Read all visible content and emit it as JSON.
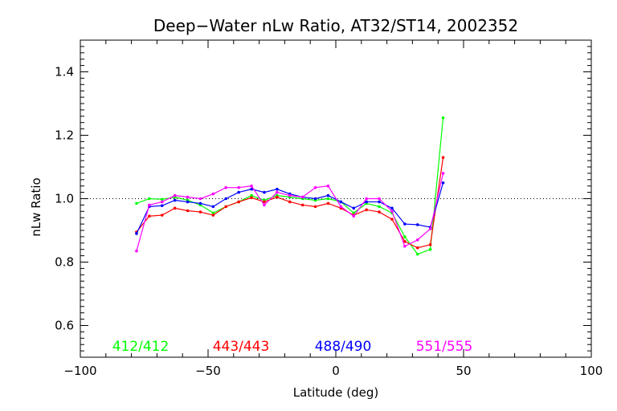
{
  "chart_data": {
    "type": "line",
    "title": "Deep−Water nLw Ratio, AT32/ST14, 2002352",
    "xlabel": "Latitude (deg)",
    "ylabel": "nLw Ratio",
    "xlim": [
      -100,
      100
    ],
    "ylim": [
      0.5,
      1.5
    ],
    "xticks": [
      -100,
      -50,
      0,
      50,
      100
    ],
    "xtick_labels": [
      "−100",
      "−50",
      "0",
      "50",
      "100"
    ],
    "yticks": [
      0.6,
      0.8,
      1.0,
      1.2,
      1.4
    ],
    "ytick_labels": [
      "0.6",
      "0.8",
      "1.0",
      "1.2",
      "1.4"
    ],
    "reference_line": {
      "y": 1.0,
      "style": "dotted"
    },
    "grid": false,
    "legend_placement": "bottom",
    "series": [
      {
        "name": "412/412",
        "color": "#00ff00",
        "x": [
          -78,
          -73,
          -68,
          -63,
          -58,
          -53,
          -48,
          -43,
          -38,
          -33,
          -28,
          -23,
          -18,
          -13,
          -8,
          -3,
          2,
          7,
          12,
          17,
          22,
          27,
          32,
          37,
          42
        ],
        "y": [
          0.985,
          1.0,
          0.998,
          1.005,
          0.995,
          0.98,
          0.955,
          0.975,
          0.99,
          1.01,
          0.995,
          1.01,
          1.005,
          1.0,
          0.995,
          1.0,
          0.99,
          0.955,
          0.985,
          0.975,
          0.955,
          0.88,
          0.825,
          0.84,
          1.255
        ]
      },
      {
        "name": "443/443",
        "color": "#ff0000",
        "x": [
          -78,
          -73,
          -68,
          -63,
          -58,
          -53,
          -48,
          -43,
          -38,
          -33,
          -28,
          -23,
          -18,
          -13,
          -8,
          -3,
          2,
          7,
          12,
          17,
          22,
          27,
          32,
          37,
          42
        ],
        "y": [
          0.895,
          0.945,
          0.948,
          0.97,
          0.962,
          0.958,
          0.948,
          0.975,
          0.99,
          1.003,
          0.99,
          1.005,
          0.99,
          0.98,
          0.975,
          0.985,
          0.97,
          0.948,
          0.965,
          0.958,
          0.935,
          0.865,
          0.845,
          0.855,
          1.13
        ]
      },
      {
        "name": "488/490",
        "color": "#0000ff",
        "x": [
          -78,
          -73,
          -68,
          -63,
          -58,
          -53,
          -48,
          -43,
          -38,
          -33,
          -28,
          -23,
          -18,
          -13,
          -8,
          -3,
          2,
          7,
          12,
          17,
          22,
          27,
          32,
          37,
          42
        ],
        "y": [
          0.89,
          0.975,
          0.978,
          0.995,
          0.99,
          0.985,
          0.975,
          1.0,
          1.02,
          1.03,
          1.02,
          1.03,
          1.015,
          1.005,
          1.0,
          1.01,
          0.99,
          0.97,
          0.99,
          0.99,
          0.97,
          0.92,
          0.918,
          0.91,
          1.05
        ]
      },
      {
        "name": "551/555",
        "color": "#ff00ff",
        "x": [
          -78,
          -73,
          -68,
          -63,
          -58,
          -53,
          -48,
          -43,
          -38,
          -33,
          -28,
          -23,
          -18,
          -13,
          -8,
          -3,
          2,
          7,
          12,
          17,
          22,
          27,
          32,
          37,
          42
        ],
        "y": [
          0.835,
          0.98,
          0.99,
          1.01,
          1.005,
          1.0,
          1.015,
          1.035,
          1.035,
          1.04,
          0.98,
          1.02,
          1.01,
          1.005,
          1.035,
          1.04,
          0.975,
          0.945,
          1.0,
          1.0,
          0.96,
          0.85,
          0.87,
          0.905,
          1.08
        ]
      }
    ]
  }
}
